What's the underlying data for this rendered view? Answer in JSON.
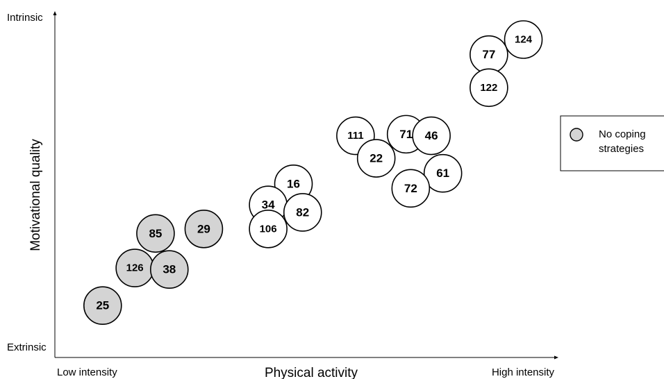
{
  "chart_data": {
    "type": "scatter",
    "xlabel": "Physical activity",
    "ylabel": "Motivational quality",
    "x_tick_labels": [
      "Low intensity",
      "High intensity"
    ],
    "y_tick_labels": [
      "Extrinsic",
      "Intrinsic"
    ],
    "xlim": [
      0,
      100
    ],
    "ylim": [
      0,
      100
    ],
    "grid": false,
    "legend": {
      "placement": "right",
      "entries": [
        {
          "label_line1": "No coping",
          "label_line2": "strategies",
          "fill": "#d4d4d4"
        }
      ]
    },
    "colors": {
      "no_coping_fill": "#d4d4d4",
      "other_fill": "#ffffff",
      "stroke": "#000000"
    },
    "points": [
      {
        "label": "25",
        "x": 4.5,
        "y": 8.5,
        "no_coping": true
      },
      {
        "label": "126",
        "x": 11.5,
        "y": 21,
        "no_coping": true
      },
      {
        "label": "38",
        "x": 19,
        "y": 20.5,
        "no_coping": true
      },
      {
        "label": "85",
        "x": 16,
        "y": 32.5,
        "no_coping": true
      },
      {
        "label": "29",
        "x": 26.5,
        "y": 34,
        "no_coping": true
      },
      {
        "label": "16",
        "x": 46,
        "y": 49,
        "no_coping": false
      },
      {
        "label": "34",
        "x": 40.5,
        "y": 42,
        "no_coping": false
      },
      {
        "label": "82",
        "x": 48,
        "y": 39.5,
        "no_coping": false
      },
      {
        "label": "106",
        "x": 40.5,
        "y": 34,
        "no_coping": false
      },
      {
        "label": "111",
        "x": 59.5,
        "y": 65,
        "no_coping": false
      },
      {
        "label": "22",
        "x": 64,
        "y": 57.5,
        "no_coping": false
      },
      {
        "label": "71",
        "x": 70.5,
        "y": 65.5,
        "no_coping": false
      },
      {
        "label": "46",
        "x": 76,
        "y": 65,
        "no_coping": false
      },
      {
        "label": "61",
        "x": 78.5,
        "y": 52.5,
        "no_coping": false
      },
      {
        "label": "72",
        "x": 71.5,
        "y": 47.5,
        "no_coping": false
      },
      {
        "label": "124",
        "x": 96,
        "y": 97,
        "no_coping": false
      },
      {
        "label": "77",
        "x": 88.5,
        "y": 92,
        "no_coping": false
      },
      {
        "label": "122",
        "x": 88.5,
        "y": 81,
        "no_coping": false
      }
    ]
  }
}
